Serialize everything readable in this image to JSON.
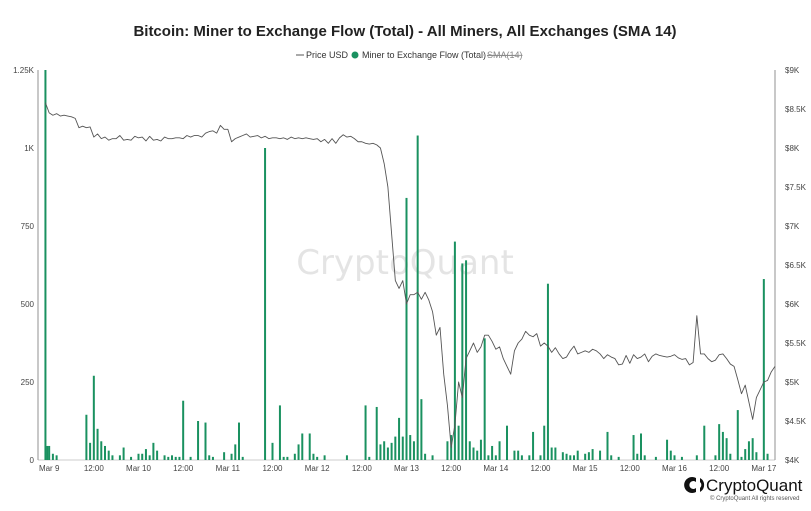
{
  "chart_data": {
    "type": "bar+line",
    "title": "Bitcoin: Miner to Exchange Flow (Total) - All Miners, All Exchanges (SMA 14)",
    "legend": [
      {
        "name": "Price USD",
        "marker": "line",
        "color": "#555555"
      },
      {
        "name": "Miner to Exchange Flow (Total)",
        "marker": "dot",
        "color": "#1a9160"
      },
      {
        "name": "SMA(14)",
        "marker": "line",
        "color": "#bbbbbb",
        "disabled": true
      }
    ],
    "legend_placement": "top-center",
    "left_axis": {
      "ticks": [
        0,
        250,
        500,
        750,
        1000,
        1250
      ],
      "labels": [
        "0",
        "250",
        "500",
        "750",
        "1K",
        "1.25K"
      ],
      "range": [
        0,
        1250
      ]
    },
    "right_axis": {
      "ticks": [
        4000,
        4500,
        5000,
        5500,
        6000,
        6500,
        7000,
        7500,
        8000,
        8500,
        9000
      ],
      "labels": [
        "$4K",
        "$4.5K",
        "$5K",
        "$5.5K",
        "$6K",
        "$6.5K",
        "$7K",
        "$7.5K",
        "$8K",
        "$8.5K",
        "$9K"
      ],
      "range": [
        4000,
        9000
      ]
    },
    "x_axis": {
      "range_hours": [
        -3,
        195
      ],
      "ticks": [
        {
          "t": 0,
          "label": "Mar 9"
        },
        {
          "t": 12,
          "label": "12:00"
        },
        {
          "t": 24,
          "label": "Mar 10"
        },
        {
          "t": 36,
          "label": "12:00"
        },
        {
          "t": 48,
          "label": "Mar 11"
        },
        {
          "t": 60,
          "label": "12:00"
        },
        {
          "t": 72,
          "label": "Mar 12"
        },
        {
          "t": 84,
          "label": "12:00"
        },
        {
          "t": 96,
          "label": "Mar 13"
        },
        {
          "t": 108,
          "label": "12:00"
        },
        {
          "t": 120,
          "label": "Mar 14"
        },
        {
          "t": 132,
          "label": "12:00"
        },
        {
          "t": 144,
          "label": "Mar 15"
        },
        {
          "t": 156,
          "label": "12:00"
        },
        {
          "t": 168,
          "label": "Mar 16"
        },
        {
          "t": 180,
          "label": "12:00"
        },
        {
          "t": 192,
          "label": "Mar 17"
        }
      ]
    },
    "grid": false,
    "flow_series": {
      "name": "Miner to Exchange Flow (Total)",
      "color": "#1a9160",
      "points": [
        [
          -1,
          1250
        ],
        [
          -0.5,
          45
        ],
        [
          0,
          45
        ],
        [
          1,
          20
        ],
        [
          2,
          15
        ],
        [
          10,
          145
        ],
        [
          11,
          55
        ],
        [
          12,
          270
        ],
        [
          13,
          100
        ],
        [
          14,
          60
        ],
        [
          15,
          45
        ],
        [
          16,
          30
        ],
        [
          17,
          15
        ],
        [
          19,
          15
        ],
        [
          20,
          40
        ],
        [
          22,
          10
        ],
        [
          24,
          20
        ],
        [
          25,
          20
        ],
        [
          26,
          35
        ],
        [
          27,
          15
        ],
        [
          28,
          55
        ],
        [
          29,
          30
        ],
        [
          31,
          15
        ],
        [
          32,
          10
        ],
        [
          33,
          15
        ],
        [
          34,
          10
        ],
        [
          35,
          10
        ],
        [
          36,
          190
        ],
        [
          38,
          10
        ],
        [
          40,
          125
        ],
        [
          42,
          120
        ],
        [
          43,
          15
        ],
        [
          44,
          10
        ],
        [
          47,
          25
        ],
        [
          49,
          20
        ],
        [
          50,
          50
        ],
        [
          51,
          120
        ],
        [
          52,
          10
        ],
        [
          58,
          1000
        ],
        [
          60,
          55
        ],
        [
          62,
          175
        ],
        [
          63,
          10
        ],
        [
          64,
          10
        ],
        [
          66,
          20
        ],
        [
          67,
          50
        ],
        [
          68,
          85
        ],
        [
          70,
          85
        ],
        [
          71,
          20
        ],
        [
          72,
          10
        ],
        [
          74,
          15
        ],
        [
          80,
          15
        ],
        [
          85,
          175
        ],
        [
          86,
          10
        ],
        [
          88,
          170
        ],
        [
          89,
          50
        ],
        [
          90,
          60
        ],
        [
          91,
          40
        ],
        [
          92,
          55
        ],
        [
          93,
          75
        ],
        [
          94,
          135
        ],
        [
          95,
          75
        ],
        [
          96,
          840
        ],
        [
          97,
          80
        ],
        [
          98,
          60
        ],
        [
          99,
          1040
        ],
        [
          100,
          195
        ],
        [
          101,
          20
        ],
        [
          103,
          15
        ],
        [
          107,
          60
        ],
        [
          108,
          80
        ],
        [
          109,
          700
        ],
        [
          110,
          110
        ],
        [
          111,
          630
        ],
        [
          112,
          640
        ],
        [
          113,
          60
        ],
        [
          114,
          40
        ],
        [
          115,
          30
        ],
        [
          116,
          65
        ],
        [
          117,
          390
        ],
        [
          118,
          15
        ],
        [
          119,
          45
        ],
        [
          120,
          15
        ],
        [
          121,
          60
        ],
        [
          123,
          110
        ],
        [
          125,
          30
        ],
        [
          126,
          30
        ],
        [
          127,
          15
        ],
        [
          129,
          15
        ],
        [
          130,
          90
        ],
        [
          132,
          15
        ],
        [
          133,
          110
        ],
        [
          134,
          565
        ],
        [
          135,
          40
        ],
        [
          136,
          40
        ],
        [
          138,
          25
        ],
        [
          139,
          20
        ],
        [
          140,
          15
        ],
        [
          141,
          15
        ],
        [
          142,
          30
        ],
        [
          144,
          20
        ],
        [
          145,
          25
        ],
        [
          146,
          35
        ],
        [
          148,
          30
        ],
        [
          150,
          90
        ],
        [
          151,
          15
        ],
        [
          153,
          10
        ],
        [
          157,
          80
        ],
        [
          158,
          20
        ],
        [
          159,
          85
        ],
        [
          160,
          15
        ],
        [
          163,
          10
        ],
        [
          166,
          65
        ],
        [
          167,
          30
        ],
        [
          168,
          15
        ],
        [
          170,
          10
        ],
        [
          174,
          15
        ],
        [
          176,
          110
        ],
        [
          179,
          15
        ],
        [
          180,
          115
        ],
        [
          181,
          90
        ],
        [
          182,
          70
        ],
        [
          183,
          20
        ],
        [
          185,
          160
        ],
        [
          186,
          10
        ],
        [
          187,
          35
        ],
        [
          188,
          60
        ],
        [
          189,
          70
        ],
        [
          190,
          25
        ],
        [
          192,
          580
        ],
        [
          193,
          20
        ]
      ]
    },
    "price_series": {
      "name": "Price USD",
      "color": "#555555",
      "points": [
        [
          -1,
          8580
        ],
        [
          0,
          8450
        ],
        [
          1,
          8420
        ],
        [
          2,
          8440
        ],
        [
          3,
          8410
        ],
        [
          4,
          8420
        ],
        [
          5,
          8410
        ],
        [
          6,
          8400
        ],
        [
          7,
          8380
        ],
        [
          8,
          8260
        ],
        [
          9,
          8280
        ],
        [
          10,
          8260
        ],
        [
          11,
          8270
        ],
        [
          12,
          8140
        ],
        [
          13,
          8180
        ],
        [
          14,
          8120
        ],
        [
          15,
          8140
        ],
        [
          16,
          8100
        ],
        [
          17,
          8120
        ],
        [
          18,
          8120
        ],
        [
          19,
          8160
        ],
        [
          20,
          8100
        ],
        [
          21,
          8110
        ],
        [
          22,
          8100
        ],
        [
          23,
          8150
        ],
        [
          24,
          8130
        ],
        [
          25,
          8140
        ],
        [
          26,
          8090
        ],
        [
          27,
          8150
        ],
        [
          28,
          8100
        ],
        [
          29,
          8110
        ],
        [
          30,
          8090
        ],
        [
          31,
          8140
        ],
        [
          32,
          8120
        ],
        [
          33,
          8120
        ],
        [
          34,
          8130
        ],
        [
          35,
          8130
        ],
        [
          36,
          8120
        ],
        [
          37,
          8160
        ],
        [
          38,
          8140
        ],
        [
          39,
          8160
        ],
        [
          40,
          8160
        ],
        [
          41,
          8140
        ],
        [
          42,
          8190
        ],
        [
          43,
          8210
        ],
        [
          44,
          8220
        ],
        [
          45,
          8190
        ],
        [
          46,
          8290
        ],
        [
          47,
          8240
        ],
        [
          48,
          8240
        ],
        [
          49,
          8080
        ],
        [
          50,
          8120
        ],
        [
          51,
          8140
        ],
        [
          52,
          8160
        ],
        [
          53,
          8180
        ],
        [
          54,
          8140
        ],
        [
          55,
          8150
        ],
        [
          56,
          8160
        ],
        [
          57,
          8130
        ],
        [
          58,
          8150
        ],
        [
          59,
          8120
        ],
        [
          60,
          8130
        ],
        [
          61,
          8130
        ],
        [
          62,
          8120
        ],
        [
          63,
          8130
        ],
        [
          64,
          8110
        ],
        [
          65,
          8140
        ],
        [
          66,
          8120
        ],
        [
          67,
          8130
        ],
        [
          68,
          8120
        ],
        [
          69,
          8130
        ],
        [
          70,
          8120
        ],
        [
          71,
          8110
        ],
        [
          72,
          8120
        ],
        [
          73,
          8080
        ],
        [
          74,
          8110
        ],
        [
          75,
          8060
        ],
        [
          76,
          8120
        ],
        [
          77,
          8060
        ],
        [
          78,
          8130
        ],
        [
          79,
          8170
        ],
        [
          80,
          8140
        ],
        [
          81,
          8150
        ],
        [
          82,
          8120
        ],
        [
          83,
          8080
        ],
        [
          84,
          8080
        ],
        [
          85,
          8060
        ],
        [
          86,
          8050
        ],
        [
          87,
          8060
        ],
        [
          88,
          8040
        ],
        [
          89,
          8000
        ],
        [
          90,
          7800
        ],
        [
          91,
          7500
        ],
        [
          92,
          6900
        ],
        [
          93,
          6300
        ],
        [
          94,
          6200
        ],
        [
          95,
          6300
        ],
        [
          96,
          6000
        ],
        [
          97,
          6120
        ],
        [
          98,
          6120
        ],
        [
          99,
          6150
        ],
        [
          100,
          6060
        ],
        [
          101,
          6150
        ],
        [
          102,
          6050
        ],
        [
          103,
          5900
        ],
        [
          104,
          5600
        ],
        [
          105,
          5700
        ],
        [
          106,
          5100
        ],
        [
          107,
          4700
        ],
        [
          108,
          4160
        ],
        [
          109,
          4450
        ],
        [
          110,
          5000
        ],
        [
          111,
          4800
        ],
        [
          112,
          5300
        ],
        [
          113,
          5400
        ],
        [
          114,
          5500
        ],
        [
          115,
          5380
        ],
        [
          116,
          5450
        ],
        [
          117,
          5600
        ],
        [
          118,
          5600
        ],
        [
          119,
          5520
        ],
        [
          120,
          5420
        ],
        [
          121,
          5450
        ],
        [
          122,
          5300
        ],
        [
          123,
          5200
        ],
        [
          124,
          5100
        ],
        [
          125,
          5400
        ],
        [
          126,
          5500
        ],
        [
          127,
          5550
        ],
        [
          128,
          5650
        ],
        [
          129,
          5600
        ],
        [
          130,
          5580
        ],
        [
          131,
          5620
        ],
        [
          132,
          5460
        ],
        [
          133,
          5500
        ],
        [
          134,
          5460
        ],
        [
          135,
          5380
        ],
        [
          136,
          5440
        ],
        [
          137,
          5360
        ],
        [
          138,
          5300
        ],
        [
          139,
          5320
        ],
        [
          140,
          5400
        ],
        [
          141,
          5460
        ],
        [
          142,
          5360
        ],
        [
          143,
          5380
        ],
        [
          144,
          5400
        ],
        [
          145,
          5380
        ],
        [
          146,
          5420
        ],
        [
          147,
          5400
        ],
        [
          148,
          5360
        ],
        [
          149,
          5300
        ],
        [
          150,
          5350
        ],
        [
          151,
          5320
        ],
        [
          152,
          5300
        ],
        [
          153,
          5220
        ],
        [
          154,
          5230
        ],
        [
          155,
          5340
        ],
        [
          156,
          5240
        ],
        [
          157,
          5350
        ],
        [
          158,
          5300
        ],
        [
          159,
          5320
        ],
        [
          160,
          5360
        ],
        [
          161,
          5260
        ],
        [
          162,
          5330
        ],
        [
          163,
          5360
        ],
        [
          164,
          5340
        ],
        [
          165,
          5330
        ],
        [
          166,
          5320
        ],
        [
          167,
          5330
        ],
        [
          168,
          5350
        ],
        [
          169,
          5310
        ],
        [
          170,
          5290
        ],
        [
          171,
          5300
        ],
        [
          172,
          5220
        ],
        [
          173,
          5250
        ],
        [
          174,
          5850
        ],
        [
          175,
          5360
        ],
        [
          176,
          5360
        ],
        [
          177,
          5300
        ],
        [
          178,
          5260
        ],
        [
          179,
          5280
        ],
        [
          180,
          5350
        ],
        [
          181,
          5360
        ],
        [
          182,
          5300
        ],
        [
          183,
          5230
        ],
        [
          184,
          5200
        ],
        [
          185,
          5030
        ],
        [
          186,
          4850
        ],
        [
          187,
          4960
        ],
        [
          188,
          4740
        ],
        [
          189,
          4520
        ],
        [
          190,
          4800
        ],
        [
          191,
          4900
        ],
        [
          192,
          5000
        ],
        [
          193,
          5020
        ],
        [
          194,
          5130
        ],
        [
          195,
          5200
        ]
      ]
    }
  },
  "watermark": "CryptoQuant",
  "brand": {
    "name": "CryptoQuant",
    "copyright": "© CryptoQuant All rights reserved"
  }
}
